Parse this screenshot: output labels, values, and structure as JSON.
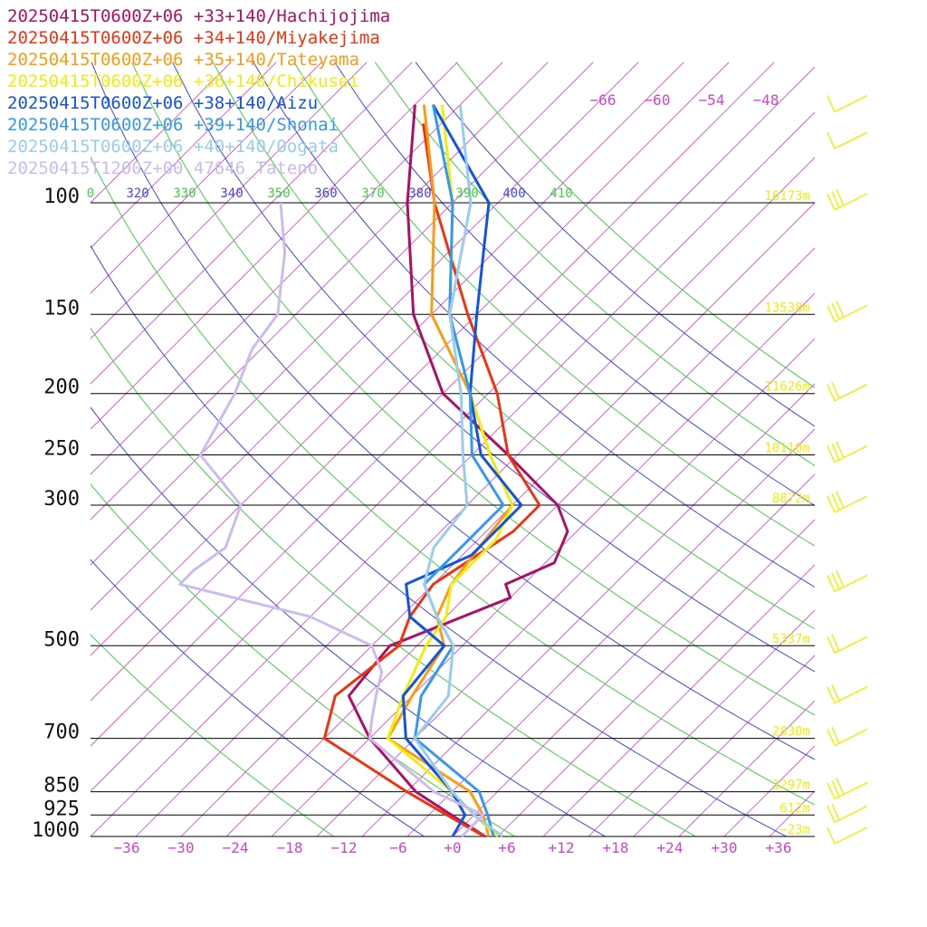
{
  "chart_data": {
    "type": "line",
    "subtype": "skew-T log-p sounding",
    "legend_position": "top-left",
    "grid": true,
    "x_axis": {
      "unit": "°C",
      "ticks": [
        -36,
        -30,
        -24,
        -18,
        -12,
        -6,
        0,
        6,
        12,
        18,
        24,
        30,
        36
      ],
      "tick_labels": [
        "−36",
        "−30",
        "−24",
        "−18",
        "−12",
        "−6",
        "+0",
        "+6",
        "+12",
        "+18",
        "+24",
        "+30",
        "+36"
      ],
      "color": "#cc44cc"
    },
    "y_axis": {
      "unit": "hPa",
      "scale": "log",
      "range": [
        1000,
        100
      ],
      "ticks": [
        100,
        150,
        200,
        250,
        300,
        500,
        700,
        850,
        925,
        1000
      ],
      "tick_labels": [
        "100",
        "150",
        "200",
        "250",
        "300",
        "500",
        "700",
        "850",
        "925",
        "1000"
      ]
    },
    "height_labels": [
      {
        "p": 100,
        "label": "16173m"
      },
      {
        "p": 150,
        "label": "13538m"
      },
      {
        "p": 200,
        "label": "11626m"
      },
      {
        "p": 250,
        "label": "10110m"
      },
      {
        "p": 300,
        "label": "8872m"
      },
      {
        "p": 500,
        "label": "5337m"
      },
      {
        "p": 700,
        "label": "2830m"
      },
      {
        "p": 850,
        "label": "1297m"
      },
      {
        "p": 925,
        "label": "612m"
      },
      {
        "p": 1000,
        "label": "−23m"
      }
    ],
    "isotherm_top_labels": [
      "−66",
      "−60",
      "−54",
      "−48"
    ],
    "theta_labels": [
      {
        "label": "0",
        "color": "#44cc44"
      },
      {
        "label": "320",
        "color": "#4444dd"
      },
      {
        "label": "330",
        "color": "#44cc44"
      },
      {
        "label": "340",
        "color": "#4444dd"
      },
      {
        "label": "350",
        "color": "#44cc44"
      },
      {
        "label": "360",
        "color": "#4444dd"
      },
      {
        "label": "370",
        "color": "#44cc44"
      },
      {
        "label": "380",
        "color": "#4444dd"
      },
      {
        "label": "390",
        "color": "#44cc44"
      },
      {
        "label": "400",
        "color": "#4444dd"
      },
      {
        "label": "410",
        "color": "#44cc44"
      }
    ],
    "series": [
      {
        "name": "20250415T0600Z+06 +33+140/Hachijojima",
        "color": "#aa1166",
        "points": [
          [
            1000,
            3.6
          ],
          [
            925,
            -2.5
          ],
          [
            850,
            -9
          ],
          [
            700,
            -20
          ],
          [
            600,
            -27
          ],
          [
            500,
            -28
          ],
          [
            420,
            -20
          ],
          [
            400,
            -22
          ],
          [
            370,
            -19
          ],
          [
            330,
            -21
          ],
          [
            300,
            -25
          ],
          [
            250,
            -36
          ],
          [
            200,
            -50
          ],
          [
            150,
            -62
          ],
          [
            100,
            -75
          ],
          [
            70,
            -85
          ]
        ]
      },
      {
        "name": "20250415T0600Z+06 +34+140/Miyakejima",
        "color": "#ee3311",
        "points": [
          [
            1000,
            3.5
          ],
          [
            925,
            -3
          ],
          [
            850,
            -10
          ],
          [
            700,
            -25
          ],
          [
            600,
            -28.5
          ],
          [
            500,
            -27
          ],
          [
            450,
            -29
          ],
          [
            400,
            -30
          ],
          [
            330,
            -27
          ],
          [
            300,
            -27
          ],
          [
            250,
            -36
          ],
          [
            200,
            -44
          ],
          [
            150,
            -56
          ],
          [
            100,
            -72
          ],
          [
            75,
            -82
          ]
        ]
      },
      {
        "name": "20250415T0600Z+06 +35+140/Tateyama",
        "color": "#ff9911",
        "points": [
          [
            1000,
            4
          ],
          [
            925,
            1
          ],
          [
            850,
            -3
          ],
          [
            700,
            -18
          ],
          [
            600,
            -20
          ],
          [
            500,
            -22
          ],
          [
            450,
            -26
          ],
          [
            400,
            -28
          ],
          [
            350,
            -29
          ],
          [
            300,
            -30
          ],
          [
            250,
            -38
          ],
          [
            200,
            -47
          ],
          [
            150,
            -60
          ],
          [
            100,
            -72
          ],
          [
            70,
            -84
          ]
        ]
      },
      {
        "name": "20250415T0600Z+06 +36+140/Chikusei",
        "color": "#eeee11",
        "points": [
          [
            1000,
            5
          ],
          [
            925,
            0
          ],
          [
            850,
            -5
          ],
          [
            700,
            -18
          ],
          [
            600,
            -21
          ],
          [
            500,
            -24
          ],
          [
            450,
            -25
          ],
          [
            400,
            -28
          ],
          [
            340,
            -28
          ],
          [
            300,
            -30
          ],
          [
            250,
            -38
          ],
          [
            200,
            -47
          ],
          [
            150,
            -58
          ],
          [
            100,
            -70
          ],
          [
            70,
            -82
          ]
        ]
      },
      {
        "name": "20250415T0600Z+06 +38+140/Aizu",
        "color": "#1155dd",
        "points": [
          [
            1000,
            0
          ],
          [
            925,
            -1
          ],
          [
            850,
            -5
          ],
          [
            700,
            -16
          ],
          [
            600,
            -21
          ],
          [
            500,
            -22
          ],
          [
            450,
            -29
          ],
          [
            400,
            -33
          ],
          [
            360,
            -29
          ],
          [
            300,
            -29
          ],
          [
            250,
            -39
          ],
          [
            200,
            -47
          ],
          [
            150,
            -55
          ],
          [
            100,
            -66
          ],
          [
            70,
            -83
          ]
        ]
      },
      {
        "name": "20250415T0600Z+06 +39+140/Shonai",
        "color": "#3399ee",
        "points": [
          [
            1000,
            4.5
          ],
          [
            925,
            1.5
          ],
          [
            850,
            -2
          ],
          [
            700,
            -15
          ],
          [
            600,
            -19
          ],
          [
            500,
            -21
          ],
          [
            450,
            -26
          ],
          [
            400,
            -31
          ],
          [
            350,
            -31
          ],
          [
            300,
            -31
          ],
          [
            250,
            -40
          ],
          [
            200,
            -47
          ],
          [
            150,
            -58
          ],
          [
            100,
            -70
          ],
          [
            70,
            -83
          ]
        ]
      },
      {
        "name": "20250415T0600Z+06 +40+140/Oogata",
        "color": "#99ccee",
        "points": [
          [
            1000,
            5.5
          ],
          [
            925,
            0
          ],
          [
            850,
            -5
          ],
          [
            700,
            -15
          ],
          [
            600,
            -16
          ],
          [
            500,
            -21
          ],
          [
            450,
            -26
          ],
          [
            400,
            -31
          ],
          [
            350,
            -34
          ],
          [
            300,
            -35
          ],
          [
            250,
            -41
          ],
          [
            200,
            -48
          ],
          [
            150,
            -58
          ],
          [
            100,
            -68
          ],
          [
            70,
            -80
          ]
        ]
      },
      {
        "name": "20250415T1200Z+00 47646_Tateno",
        "color": "#ccbbee",
        "points": [
          [
            1000,
            1
          ],
          [
            925,
            1
          ],
          [
            850,
            -7
          ],
          [
            700,
            -20
          ],
          [
            650,
            -22
          ],
          [
            600,
            -24
          ],
          [
            550,
            -26
          ],
          [
            500,
            -30
          ],
          [
            450,
            -40
          ],
          [
            400,
            -58
          ],
          [
            380,
            -58
          ],
          [
            350,
            -57
          ],
          [
            300,
            -60
          ],
          [
            250,
            -70
          ],
          [
            200,
            -73
          ],
          [
            170,
            -76
          ],
          [
            150,
            -77
          ],
          [
            120,
            -83
          ],
          [
            100,
            -89
          ]
        ]
      }
    ],
    "wind_barbs": [
      {
        "p": 70,
        "flags": 0,
        "full": 1,
        "half": 0
      },
      {
        "p": 80,
        "flags": 0,
        "full": 1,
        "half": 0
      },
      {
        "p": 100,
        "flags": 0,
        "full": 3,
        "half": 0
      },
      {
        "p": 150,
        "flags": 0,
        "full": 3,
        "half": 0
      },
      {
        "p": 200,
        "flags": 0,
        "full": 2,
        "half": 0
      },
      {
        "p": 250,
        "flags": 0,
        "full": 3,
        "half": 0
      },
      {
        "p": 300,
        "flags": 0,
        "full": 3,
        "half": 0
      },
      {
        "p": 400,
        "flags": 0,
        "full": 3,
        "half": 0
      },
      {
        "p": 500,
        "flags": 0,
        "full": 2,
        "half": 0
      },
      {
        "p": 600,
        "flags": 0,
        "full": 2,
        "half": 0
      },
      {
        "p": 700,
        "flags": 0,
        "full": 2,
        "half": 0
      },
      {
        "p": 850,
        "flags": 0,
        "full": 3,
        "half": 0
      },
      {
        "p": 925,
        "flags": 0,
        "full": 2,
        "half": 0
      },
      {
        "p": 1000,
        "flags": 0,
        "full": 1,
        "half": 0
      }
    ],
    "colors": {
      "isobar": "#000000",
      "isotherm": "#cc44cc",
      "dry_adiabat_a": "#44cc44",
      "dry_adiabat_b": "#4444dd",
      "height_label": "#eeee11",
      "wind_barb": "#eeee11"
    }
  }
}
